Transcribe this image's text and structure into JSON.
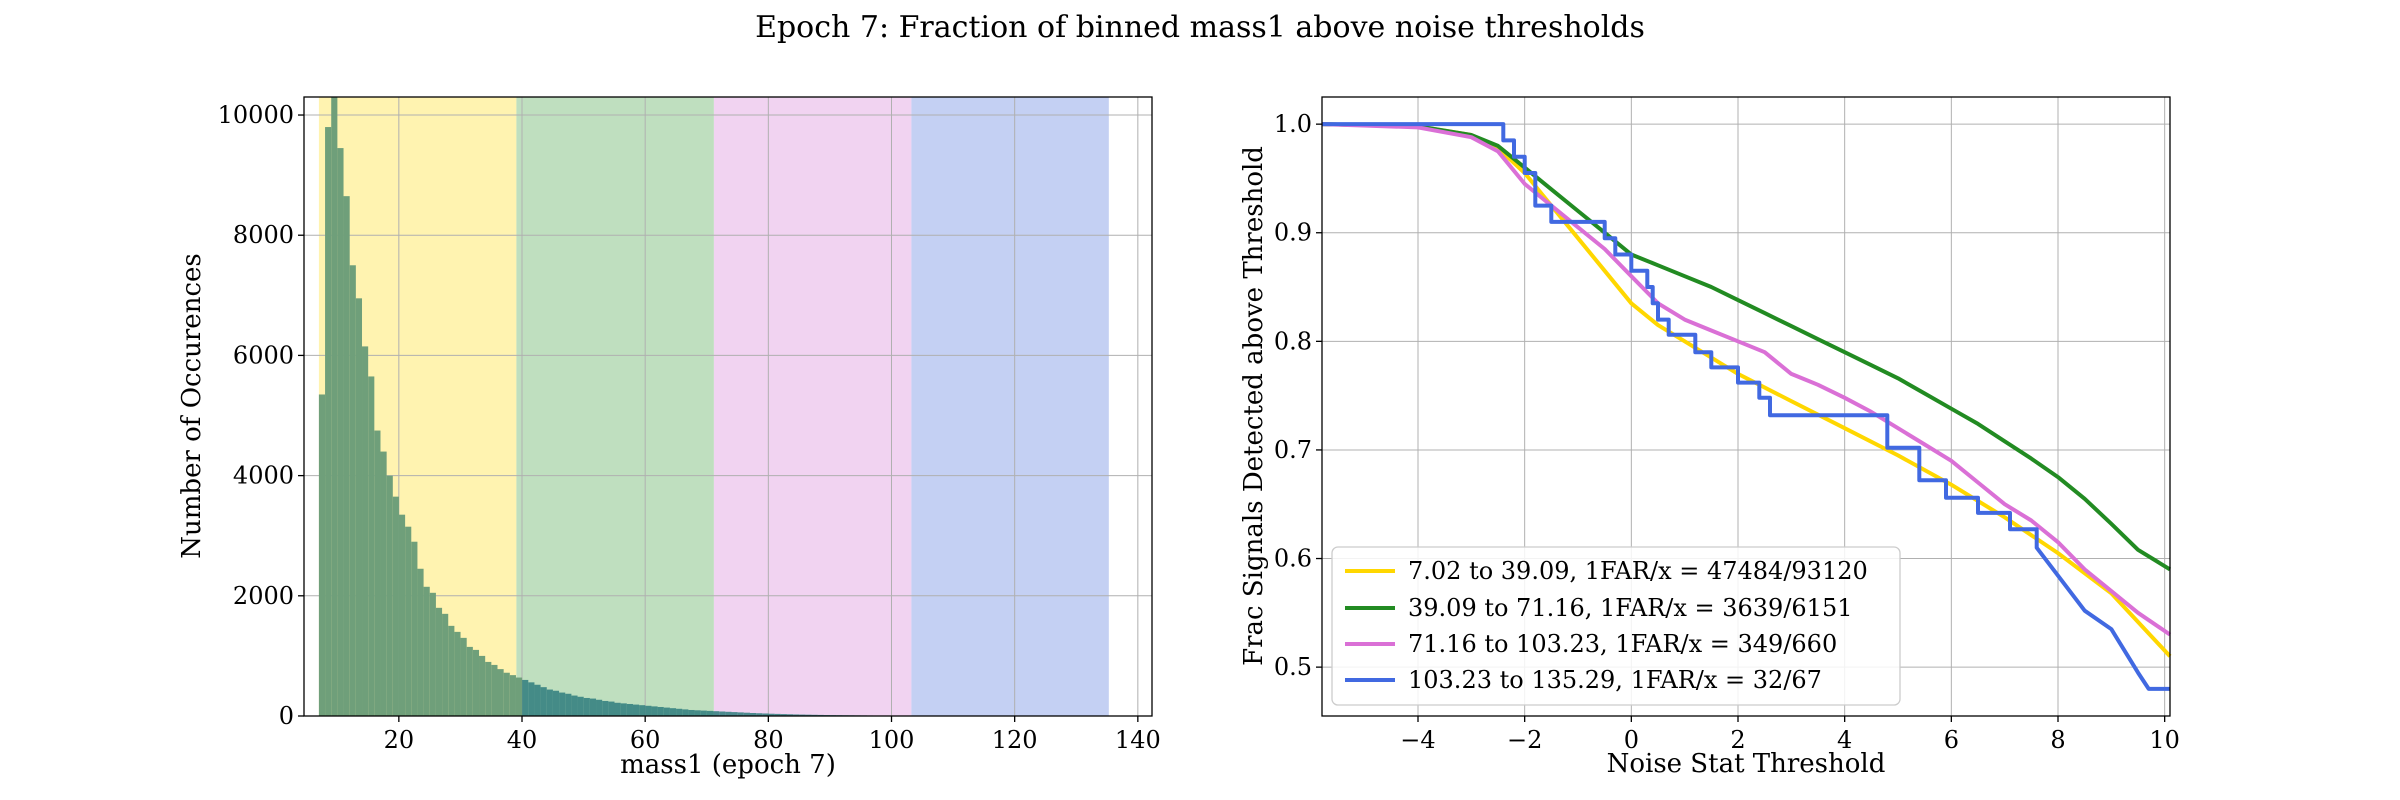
{
  "suptitle": "Epoch 7: Fraction of binned mass1 above noise thresholds",
  "colors": {
    "yellow": "#ffd700",
    "green": "#228b22",
    "magenta": "#da70d6",
    "blue": "#4169e1",
    "hist": "#6f9f7a",
    "hist_dark": "#2e7d7d"
  },
  "chart_data": [
    {
      "type": "bar",
      "subtype": "histogram",
      "title": "",
      "xlabel": "mass1 (epoch 7)",
      "ylabel": "Number of Occurences",
      "xlim": [
        4.6,
        142.3
      ],
      "ylim": [
        0,
        10300
      ],
      "xticks": [
        20,
        40,
        60,
        80,
        100,
        120,
        140
      ],
      "yticks": [
        0,
        2000,
        4000,
        6000,
        8000,
        10000
      ],
      "grid": true,
      "bands": [
        {
          "from": 7.02,
          "to": 39.09,
          "color": "yellow"
        },
        {
          "from": 39.09,
          "to": 71.16,
          "color": "green"
        },
        {
          "from": 71.16,
          "to": 103.23,
          "color": "magenta"
        },
        {
          "from": 103.23,
          "to": 135.29,
          "color": "blue"
        }
      ],
      "bin_start": 7.02,
      "bin_width": 1.0,
      "values": [
        5350,
        9800,
        10300,
        9450,
        8650,
        7500,
        6950,
        6150,
        5650,
        4750,
        4400,
        4000,
        3650,
        3350,
        3150,
        2900,
        2450,
        2150,
        2050,
        1800,
        1700,
        1500,
        1400,
        1300,
        1150,
        1100,
        1000,
        900,
        850,
        780,
        720,
        680,
        640,
        600,
        560,
        520,
        480,
        440,
        420,
        390,
        370,
        340,
        320,
        300,
        290,
        270,
        250,
        240,
        220,
        210,
        200,
        190,
        180,
        170,
        160,
        150,
        140,
        130,
        120,
        110,
        100,
        95,
        90,
        85,
        80,
        75,
        70,
        65,
        60,
        55,
        50,
        46,
        42,
        38,
        35,
        32,
        29,
        26,
        24,
        22,
        20,
        18,
        16,
        15,
        14,
        13,
        12,
        11,
        10,
        9,
        8,
        7,
        6,
        5,
        5,
        4,
        4,
        3,
        3,
        2
      ]
    },
    {
      "type": "line",
      "title": "",
      "xlabel": "Noise Stat Threshold",
      "ylabel": "Frac Signals Detected above Threshold",
      "xlim": [
        -5.8,
        10.1
      ],
      "ylim": [
        0.455,
        1.025
      ],
      "xticks": [
        -4,
        -2,
        0,
        2,
        4,
        6,
        8,
        10
      ],
      "yticks": [
        0.5,
        0.6,
        0.7,
        0.8,
        0.9,
        1.0
      ],
      "ytick_labels": [
        "0.5",
        "0.6",
        "0.7",
        "0.8",
        "0.9",
        "1.0"
      ],
      "xtick_labels": [
        "−4",
        "−2",
        "0",
        "2",
        "4",
        "6",
        "8",
        "10"
      ],
      "grid": true,
      "legend_position": "lower-left",
      "series": [
        {
          "name": "7.02 to 39.09, 1FAR/x = 47484/93120",
          "color": "yellow",
          "x": [
            -5.8,
            -4,
            -3,
            -2.5,
            -2,
            -1.5,
            -1,
            -0.5,
            0,
            0.5,
            1,
            2,
            3,
            4,
            5,
            6,
            7,
            8,
            9,
            10.1
          ],
          "y": [
            1.0,
            0.998,
            0.99,
            0.978,
            0.955,
            0.925,
            0.895,
            0.865,
            0.835,
            0.815,
            0.8,
            0.77,
            0.745,
            0.72,
            0.695,
            0.668,
            0.638,
            0.605,
            0.568,
            0.51
          ]
        },
        {
          "name": "39.09 to 71.16, 1FAR/x = 3639/6151",
          "color": "green",
          "x": [
            -5.8,
            -4,
            -3,
            -2.5,
            -2,
            -1.5,
            -1,
            -0.5,
            0,
            0.5,
            1,
            1.5,
            2,
            2.5,
            3,
            3.5,
            4,
            4.5,
            5,
            5.5,
            6,
            6.5,
            7,
            7.5,
            8,
            8.5,
            9,
            9.5,
            10.1
          ],
          "y": [
            1.0,
            0.998,
            0.99,
            0.98,
            0.96,
            0.94,
            0.92,
            0.9,
            0.88,
            0.87,
            0.86,
            0.85,
            0.838,
            0.826,
            0.814,
            0.802,
            0.79,
            0.778,
            0.766,
            0.752,
            0.738,
            0.724,
            0.708,
            0.692,
            0.675,
            0.655,
            0.632,
            0.608,
            0.59
          ]
        },
        {
          "name": "71.16 to 103.23, 1FAR/x = 349/660",
          "color": "magenta",
          "x": [
            -5.8,
            -4,
            -3,
            -2.5,
            -2,
            -1.5,
            -1,
            -0.5,
            0,
            0.5,
            1,
            1.5,
            2,
            2.5,
            3,
            3.5,
            4,
            4.5,
            5,
            5.5,
            6,
            6.5,
            7,
            7.5,
            8,
            8.5,
            9,
            9.5,
            10.1
          ],
          "y": [
            1.0,
            0.997,
            0.988,
            0.975,
            0.945,
            0.925,
            0.905,
            0.885,
            0.86,
            0.835,
            0.82,
            0.81,
            0.8,
            0.79,
            0.77,
            0.76,
            0.748,
            0.735,
            0.72,
            0.705,
            0.69,
            0.67,
            0.65,
            0.635,
            0.615,
            0.59,
            0.57,
            0.55,
            0.53
          ]
        },
        {
          "name": "103.23 to 135.29, 1FAR/x = 32/67",
          "color": "blue",
          "x": [
            -5.8,
            -2.4,
            -2.4,
            -2.2,
            -2.2,
            -2.0,
            -2.0,
            -1.8,
            -1.8,
            -1.5,
            -1.5,
            -1.2,
            -1.2,
            -0.5,
            -0.5,
            -0.3,
            -0.3,
            0.0,
            0.0,
            0.3,
            0.3,
            0.4,
            0.4,
            0.5,
            0.5,
            0.7,
            0.7,
            1.2,
            1.2,
            1.5,
            1.5,
            2.0,
            2.0,
            2.4,
            2.4,
            2.6,
            2.6,
            4.8,
            4.8,
            5.4,
            5.4,
            5.9,
            5.9,
            6.5,
            6.5,
            7.1,
            7.1,
            7.6,
            7.6,
            8.5,
            9.0,
            9.5,
            9.7,
            10.1
          ],
          "y": [
            1.0,
            1.0,
            0.985,
            0.985,
            0.97,
            0.97,
            0.955,
            0.955,
            0.925,
            0.925,
            0.91,
            0.91,
            0.91,
            0.91,
            0.895,
            0.895,
            0.88,
            0.88,
            0.865,
            0.865,
            0.85,
            0.85,
            0.835,
            0.835,
            0.82,
            0.82,
            0.806,
            0.806,
            0.79,
            0.79,
            0.776,
            0.776,
            0.762,
            0.762,
            0.748,
            0.748,
            0.732,
            0.732,
            0.702,
            0.702,
            0.672,
            0.672,
            0.656,
            0.656,
            0.642,
            0.642,
            0.627,
            0.627,
            0.61,
            0.552,
            0.535,
            0.495,
            0.48,
            0.48
          ]
        }
      ]
    }
  ]
}
